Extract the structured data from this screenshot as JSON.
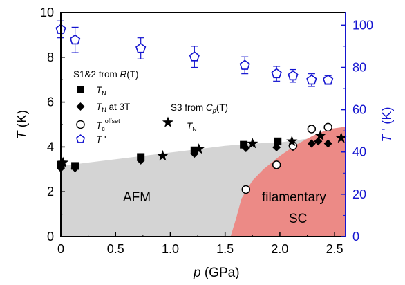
{
  "chart_data": {
    "type": "scatter",
    "xlabel": {
      "var": "p",
      "unit": " (GPa)"
    },
    "ylabel": "T (K)",
    "y2label": "T ' (K)",
    "xlim": [
      0,
      2.6
    ],
    "ylim": [
      0,
      10
    ],
    "y2lim": [
      0,
      106
    ],
    "xticks": [
      "0",
      "0.5",
      "1.0",
      "1.5",
      "2.0",
      "2.5"
    ],
    "xtick_values": [
      0,
      0.5,
      1.0,
      1.5,
      2.0,
      2.5
    ],
    "yticks": [
      "0",
      "2",
      "4",
      "6",
      "8",
      "10"
    ],
    "ytick_values": [
      0,
      2,
      4,
      6,
      8,
      10
    ],
    "y2ticks": [
      "0",
      "20",
      "40",
      "60",
      "80",
      "100"
    ],
    "y2tick_values": [
      0,
      20,
      40,
      60,
      80,
      100
    ],
    "colors": {
      "left_axis": "#000000",
      "right_axis": "#1515d0",
      "afm_region": "#d4d4d4",
      "sc_region": "#ec8a86"
    },
    "regions": [
      {
        "name": "AFM",
        "label": "AFM",
        "color": "#d4d4d4",
        "boundary": [
          [
            0,
            3.15
          ],
          [
            0.5,
            3.45
          ],
          [
            1.0,
            3.75
          ],
          [
            1.25,
            3.9
          ],
          [
            1.5,
            4.05
          ],
          [
            1.75,
            4.15
          ],
          [
            2.0,
            4.2
          ],
          [
            2.3,
            4.4
          ],
          [
            2.6,
            4.5
          ]
        ]
      },
      {
        "name": "filamentary-SC",
        "label_line1": "filamentary",
        "label_line2": "SC",
        "color": "#ec8a86",
        "boundary": [
          [
            1.55,
            0
          ],
          [
            1.6,
            0.8
          ],
          [
            1.65,
            1.7
          ],
          [
            1.75,
            2.5
          ],
          [
            1.85,
            3.0
          ],
          [
            2.0,
            3.6
          ],
          [
            2.15,
            4.1
          ],
          [
            2.3,
            4.5
          ],
          [
            2.45,
            4.8
          ],
          [
            2.6,
            4.9
          ]
        ]
      }
    ],
    "legend_group1_title": {
      "text": "S1&2 from ",
      "var": "R",
      "arg": "(T)"
    },
    "legend_group2_title": {
      "text": "S3 from ",
      "var": "C",
      "sub": "p",
      "arg": "(T)"
    },
    "series": [
      {
        "name": "T_N",
        "label_main": "T",
        "label_sub": "N",
        "label_after": "",
        "marker": "square",
        "color": "#000000",
        "axis": "left",
        "x": [
          0.0,
          0.13,
          0.73,
          1.22,
          1.67,
          1.98
        ],
        "y": [
          3.2,
          3.15,
          3.55,
          3.85,
          4.1,
          4.25
        ]
      },
      {
        "name": "T_N at 3T",
        "label_main": "T",
        "label_sub": "N",
        "label_after": " at 3T",
        "marker": "diamond",
        "color": "#000000",
        "axis": "left",
        "x": [
          0.0,
          0.13,
          0.73,
          1.22,
          1.69,
          1.97,
          2.12,
          2.29,
          2.35,
          2.44
        ],
        "y": [
          3.05,
          3.05,
          3.4,
          3.7,
          3.95,
          3.98,
          4.0,
          4.15,
          4.25,
          4.15
        ]
      },
      {
        "name": "T_c^offset",
        "label_main": "T",
        "label_sub": "c",
        "label_sup": "offset",
        "label_after": "",
        "marker": "circle-open",
        "color": "#000000",
        "axis": "left",
        "x": [
          1.69,
          1.97,
          2.12,
          2.29,
          2.44
        ],
        "y": [
          2.1,
          3.2,
          4.05,
          4.8,
          4.88
        ]
      },
      {
        "name": "T'",
        "label_main": "T",
        "label_sub": "",
        "label_after": " '",
        "marker": "pentagon-open",
        "color": "#1515d0",
        "axis": "right",
        "x": [
          0.0,
          0.13,
          0.73,
          1.22,
          1.68,
          1.97,
          2.12,
          2.29,
          2.44
        ],
        "y": [
          98,
          93,
          89,
          85,
          81,
          77,
          76,
          74,
          74
        ],
        "yerr": [
          4,
          6,
          5,
          5,
          4,
          3.5,
          3,
          3,
          2
        ]
      },
      {
        "name": "T_N (S3, Cp)",
        "label_main": "T",
        "label_sub": "N",
        "label_after": "",
        "marker": "star",
        "color": "#000000",
        "axis": "left",
        "x": [
          0.02,
          0.93,
          1.26,
          1.75,
          2.11,
          2.37,
          2.56
        ],
        "y": [
          3.3,
          3.6,
          3.9,
          4.15,
          4.25,
          4.5,
          4.4
        ]
      }
    ]
  }
}
